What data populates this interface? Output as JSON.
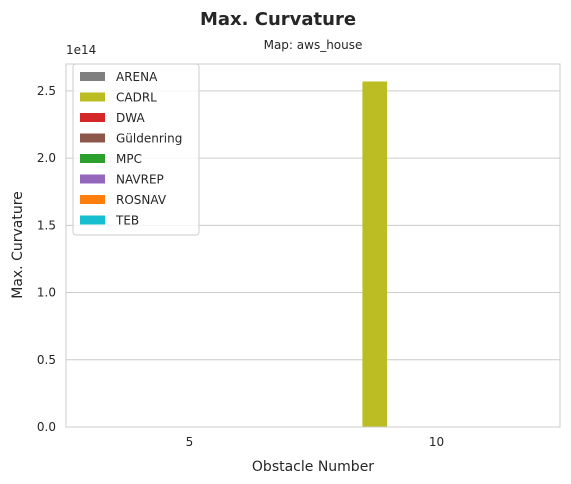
{
  "chart_data": {
    "type": "bar",
    "title": "Max. Curvature",
    "subtitle": "Map: aws_house",
    "xlabel": "Obstacle Number",
    "ylabel": "Max. Curvature",
    "y_offset_label": "1e14",
    "y_scale": 100000000000000.0,
    "ylim": [
      0,
      2.7
    ],
    "yticks": [
      0.0,
      0.5,
      1.0,
      1.5,
      2.0,
      2.5
    ],
    "ytick_labels": [
      "0.0",
      "0.5",
      "1.0",
      "1.5",
      "2.0",
      "2.5"
    ],
    "categories": [
      "5",
      "10"
    ],
    "grid": true,
    "legend_position": "top-left",
    "series": [
      {
        "name": "ARENA",
        "color": "#7f7f7f",
        "values": [
          0,
          0
        ]
      },
      {
        "name": "CADRL",
        "color": "#bcbd22",
        "values": [
          0,
          2.57
        ]
      },
      {
        "name": "DWA",
        "color": "#d62728",
        "values": [
          0,
          0
        ]
      },
      {
        "name": "Güldenring",
        "color": "#8c564b",
        "values": [
          0,
          0
        ]
      },
      {
        "name": "MPC",
        "color": "#2ca02c",
        "values": [
          0,
          0
        ]
      },
      {
        "name": "NAVREP",
        "color": "#9467bd",
        "values": [
          0,
          0
        ]
      },
      {
        "name": "ROSNAV",
        "color": "#ff7f0e",
        "values": [
          0,
          0
        ]
      },
      {
        "name": "TEB",
        "color": "#17becf",
        "values": [
          0,
          0
        ]
      }
    ]
  }
}
